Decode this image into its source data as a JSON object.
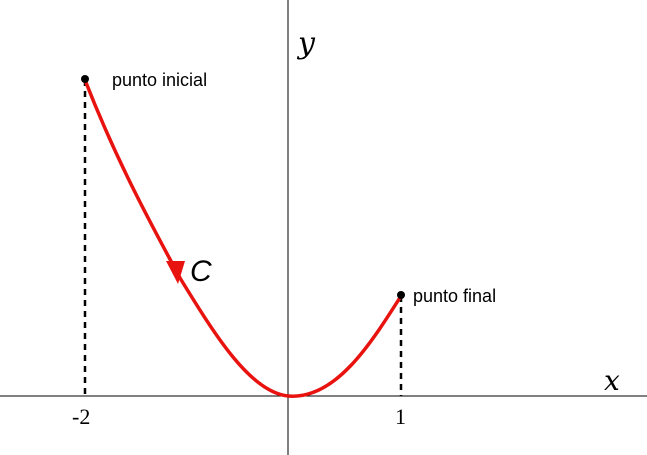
{
  "diagram": {
    "axis_labels": {
      "x": "x",
      "y": "y"
    },
    "ticks": {
      "left": "-2",
      "right": "1"
    },
    "points": {
      "start_label": "punto inicial",
      "end_label": "punto final"
    },
    "curve_label": "C",
    "colors": {
      "curve": "#e8120f",
      "axes": "#000000",
      "text": "#000000"
    },
    "icons": {
      "arrow": "direction-arrow-icon",
      "start_point": "dot",
      "end_point": "dot"
    }
  }
}
